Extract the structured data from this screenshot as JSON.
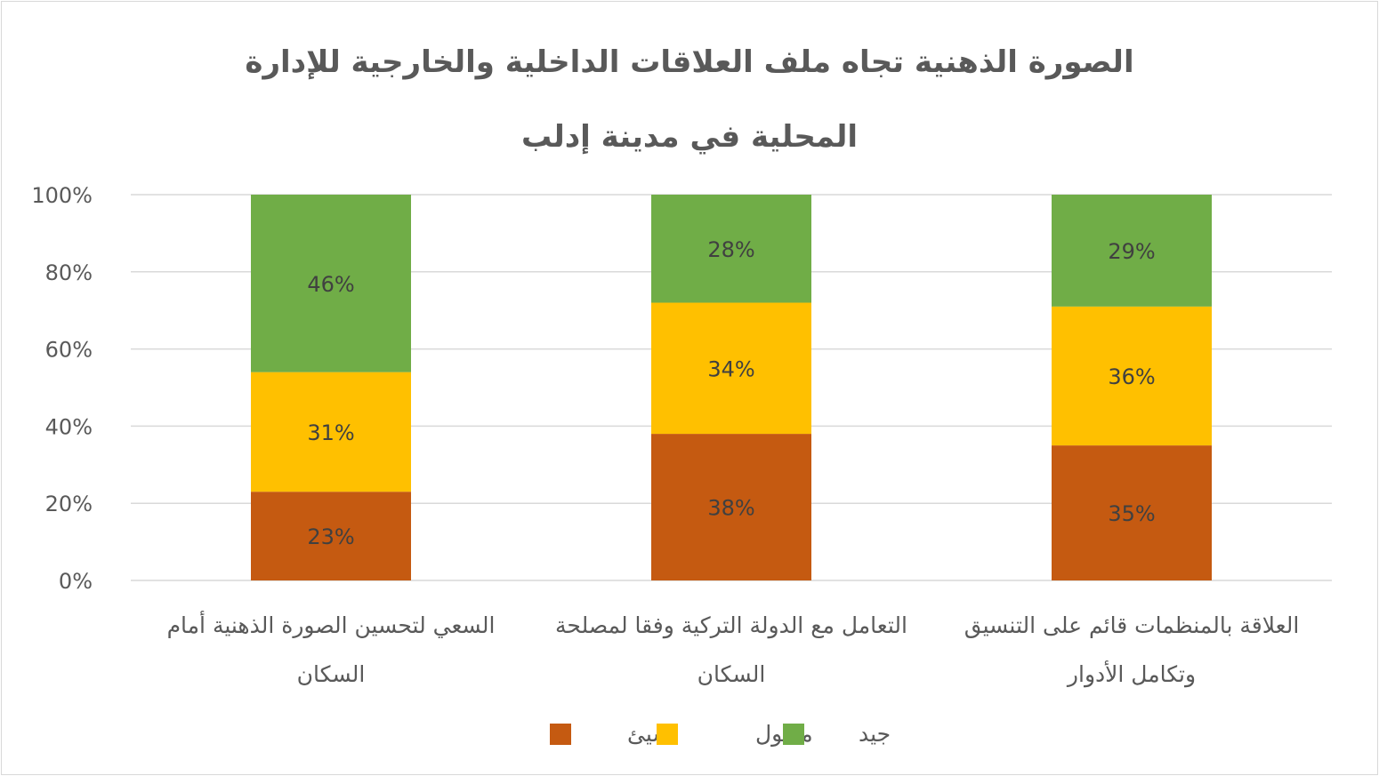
{
  "chart_data": {
    "type": "bar",
    "stacked": "percent",
    "title_lines": [
      "الصورة الذهنية تجاه ملف العلاقات الداخلية والخارجية للإدارة",
      "المحلية في مدينة إدلب"
    ],
    "categories": [
      [
        "السعي لتحسين الصورة الذهنية أمام",
        "السكان"
      ],
      [
        "التعامل مع الدولة التركية وفقا لمصلحة",
        "السكان"
      ],
      [
        "العلاقة بالمنظمات قائم على التنسيق",
        "وتكامل الأدوار"
      ]
    ],
    "series": [
      {
        "name": "سيئ",
        "color": "#c55a11",
        "values": [
          23,
          38,
          35
        ],
        "labels": [
          "23%",
          "38%",
          "35%"
        ]
      },
      {
        "name": "مقبول",
        "color": "#ffc000",
        "values": [
          31,
          34,
          36
        ],
        "labels": [
          "31%",
          "34%",
          "36%"
        ]
      },
      {
        "name": "جيد",
        "color": "#70ad47",
        "values": [
          46,
          28,
          29
        ],
        "labels": [
          "46%",
          "28%",
          "29%"
        ]
      }
    ],
    "ylim": [
      0,
      100
    ],
    "yticks": [
      0,
      20,
      40,
      60,
      80,
      100
    ],
    "ytick_labels": [
      "0%",
      "20%",
      "40%",
      "60%",
      "80%",
      "100%"
    ],
    "grid": true,
    "legend_position": "bottom",
    "xlabel": "",
    "ylabel": ""
  }
}
